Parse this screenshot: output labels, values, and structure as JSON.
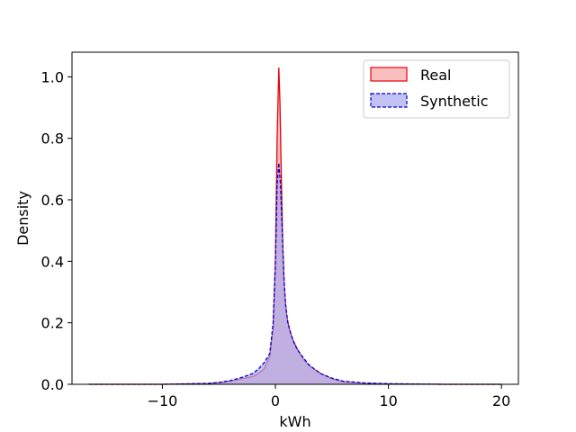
{
  "chart_data": {
    "type": "area",
    "xlabel": "kWh",
    "ylabel": "Density",
    "xlim": [
      -18,
      21.5
    ],
    "ylim": [
      0,
      1.08
    ],
    "xticks": [
      -10,
      0,
      10,
      20
    ],
    "yticks": [
      0.0,
      0.2,
      0.4,
      0.6,
      0.8,
      1.0
    ],
    "xtick_labels": [
      "−10",
      "0",
      "10",
      "20"
    ],
    "ytick_labels": [
      "0.0",
      "0.2",
      "0.4",
      "0.6",
      "0.8",
      "1.0"
    ],
    "grid": false,
    "legend_position": "top-right",
    "series": [
      {
        "name": "Real",
        "line_color": "#e8000b",
        "fill_color": "#f7a6a6",
        "line_style": "solid",
        "x": [
          -16.5,
          -10,
          -6,
          -5,
          -4,
          -3,
          -2,
          -1.5,
          -1,
          -0.5,
          -0.2,
          0,
          0.15,
          0.3,
          0.4,
          0.5,
          0.65,
          0.8,
          1,
          1.3,
          1.6,
          2,
          2.5,
          3,
          4,
          5,
          6,
          8,
          10,
          15,
          20
        ],
        "y": [
          0,
          0,
          0.002,
          0.005,
          0.01,
          0.018,
          0.025,
          0.035,
          0.05,
          0.09,
          0.18,
          0.4,
          0.8,
          1.03,
          0.92,
          0.72,
          0.45,
          0.3,
          0.22,
          0.17,
          0.14,
          0.11,
          0.08,
          0.06,
          0.035,
          0.018,
          0.008,
          0.003,
          0.001,
          0,
          0
        ]
      },
      {
        "name": "Synthetic",
        "line_color": "#0000d4",
        "fill_color": "#a9a9ee",
        "line_style": "dashed",
        "x": [
          -16.5,
          -10,
          -6,
          -5,
          -4,
          -3,
          -2,
          -1.5,
          -1,
          -0.5,
          -0.2,
          0,
          0.15,
          0.3,
          0.45,
          0.6,
          0.75,
          0.9,
          1.1,
          1.4,
          1.7,
          2,
          2.5,
          3,
          4,
          5,
          6,
          8,
          10,
          15,
          20
        ],
        "y": [
          0,
          0,
          0.003,
          0.006,
          0.012,
          0.022,
          0.035,
          0.05,
          0.07,
          0.1,
          0.2,
          0.4,
          0.65,
          0.72,
          0.65,
          0.5,
          0.35,
          0.26,
          0.2,
          0.16,
          0.13,
          0.11,
          0.085,
          0.062,
          0.035,
          0.02,
          0.01,
          0.004,
          0.002,
          0,
          0
        ]
      }
    ]
  }
}
